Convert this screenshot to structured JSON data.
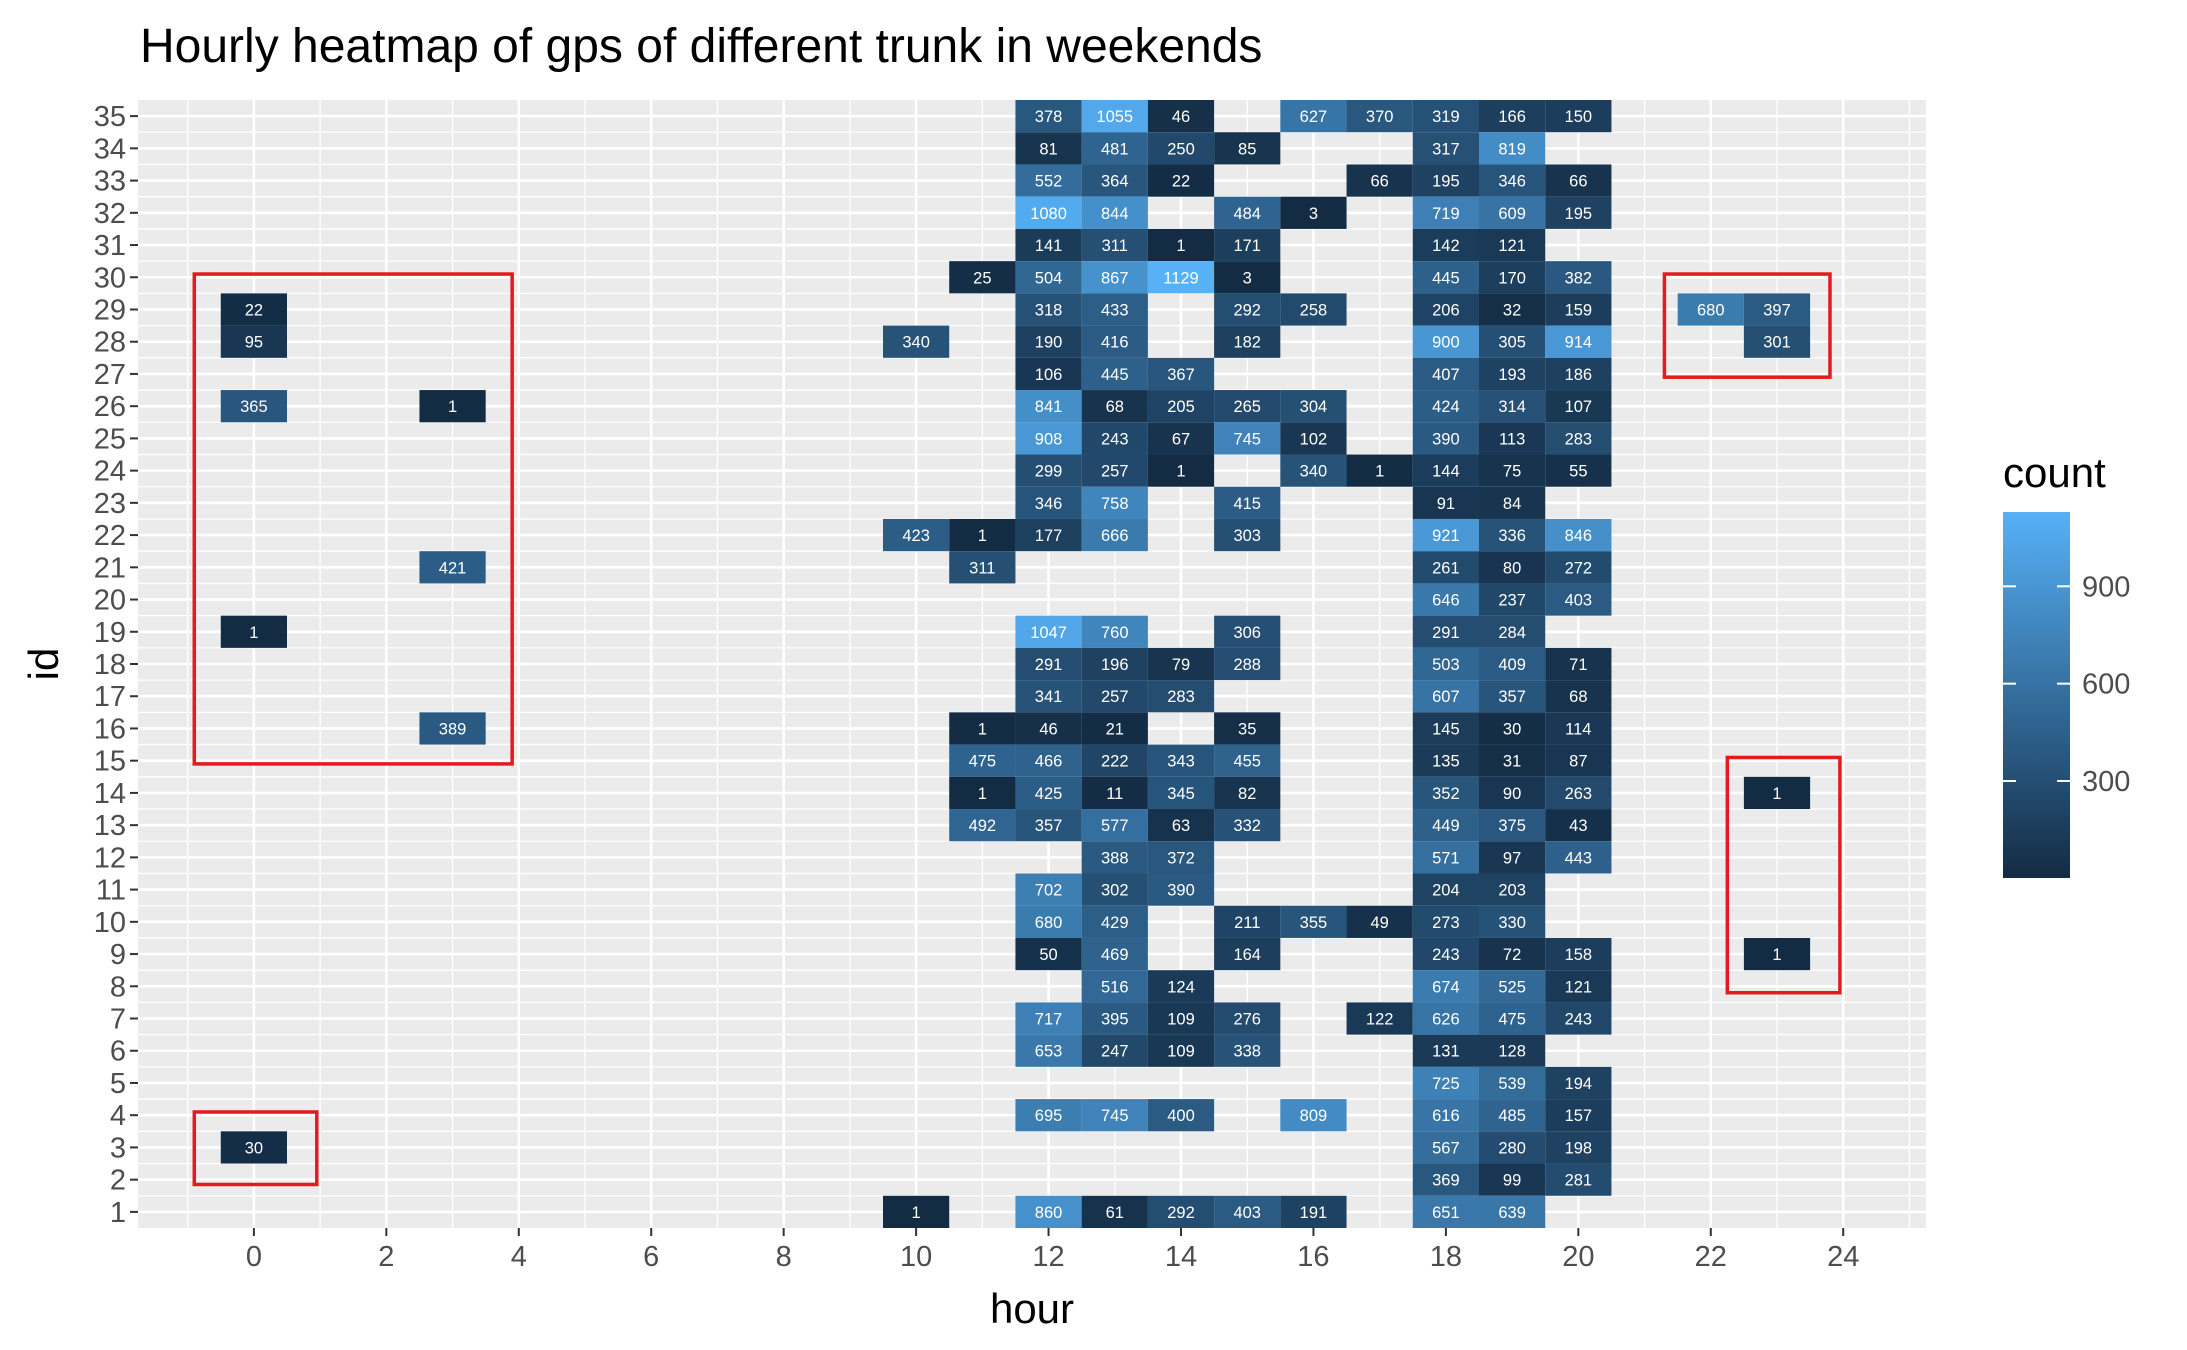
{
  "chart_data": {
    "type": "heatmap",
    "title": "Hourly heatmap of gps of different trunk in weekends",
    "xlabel": "hour",
    "ylabel": "id",
    "xlim": [
      -1.75,
      25.25
    ],
    "ylim": [
      0.5,
      35.5
    ],
    "x_ticks": [
      "0",
      "2",
      "4",
      "6",
      "8",
      "10",
      "12",
      "14",
      "16",
      "18",
      "20",
      "22",
      "24"
    ],
    "y_ticks": [
      "1",
      "2",
      "3",
      "4",
      "5",
      "6",
      "7",
      "8",
      "9",
      "10",
      "11",
      "12",
      "13",
      "14",
      "15",
      "16",
      "17",
      "18",
      "19",
      "20",
      "21",
      "22",
      "23",
      "24",
      "25",
      "26",
      "27",
      "28",
      "29",
      "30",
      "31",
      "32",
      "33",
      "34",
      "35"
    ],
    "grid": true,
    "legend": {
      "title": "count",
      "position": "right",
      "ticks": [
        "300",
        "600",
        "900"
      ],
      "range": [
        1,
        1129
      ],
      "color_low": "#132B43",
      "color_high": "#56B1F7"
    },
    "cells": [
      [
        0,
        29,
        22
      ],
      [
        0,
        28,
        95
      ],
      [
        0,
        26,
        365
      ],
      [
        0,
        19,
        1
      ],
      [
        0,
        3,
        30
      ],
      [
        3,
        26,
        1
      ],
      [
        3,
        21,
        421
      ],
      [
        3,
        16,
        389
      ],
      [
        10,
        28,
        340
      ],
      [
        10,
        22,
        423
      ],
      [
        10,
        1,
        1
      ],
      [
        11,
        30,
        25
      ],
      [
        11,
        22,
        1
      ],
      [
        11,
        21,
        311
      ],
      [
        11,
        16,
        1
      ],
      [
        11,
        15,
        475
      ],
      [
        11,
        14,
        1
      ],
      [
        11,
        13,
        492
      ],
      [
        12,
        35,
        378
      ],
      [
        12,
        34,
        81
      ],
      [
        12,
        33,
        552
      ],
      [
        12,
        32,
        1080
      ],
      [
        12,
        31,
        141
      ],
      [
        12,
        30,
        504
      ],
      [
        12,
        29,
        318
      ],
      [
        12,
        28,
        190
      ],
      [
        12,
        27,
        106
      ],
      [
        12,
        26,
        841
      ],
      [
        12,
        25,
        908
      ],
      [
        12,
        24,
        299
      ],
      [
        12,
        23,
        346
      ],
      [
        12,
        22,
        177
      ],
      [
        12,
        19,
        1047
      ],
      [
        12,
        18,
        291
      ],
      [
        12,
        17,
        341
      ],
      [
        12,
        16,
        46
      ],
      [
        12,
        15,
        466
      ],
      [
        12,
        14,
        425
      ],
      [
        12,
        13,
        357
      ],
      [
        12,
        11,
        702
      ],
      [
        12,
        10,
        680
      ],
      [
        12,
        9,
        50
      ],
      [
        12,
        7,
        717
      ],
      [
        12,
        6,
        653
      ],
      [
        12,
        4,
        695
      ],
      [
        12,
        1,
        860
      ],
      [
        13,
        35,
        1055
      ],
      [
        13,
        34,
        481
      ],
      [
        13,
        33,
        364
      ],
      [
        13,
        32,
        844
      ],
      [
        13,
        31,
        311
      ],
      [
        13,
        30,
        867
      ],
      [
        13,
        29,
        433
      ],
      [
        13,
        28,
        416
      ],
      [
        13,
        27,
        445
      ],
      [
        13,
        26,
        68
      ],
      [
        13,
        25,
        243
      ],
      [
        13,
        24,
        257
      ],
      [
        13,
        23,
        758
      ],
      [
        13,
        22,
        666
      ],
      [
        13,
        19,
        760
      ],
      [
        13,
        18,
        196
      ],
      [
        13,
        17,
        257
      ],
      [
        13,
        16,
        21
      ],
      [
        13,
        15,
        222
      ],
      [
        13,
        14,
        11
      ],
      [
        13,
        13,
        577
      ],
      [
        13,
        12,
        388
      ],
      [
        13,
        11,
        302
      ],
      [
        13,
        10,
        429
      ],
      [
        13,
        9,
        469
      ],
      [
        13,
        8,
        516
      ],
      [
        13,
        7,
        395
      ],
      [
        13,
        6,
        247
      ],
      [
        13,
        4,
        745
      ],
      [
        13,
        1,
        61
      ],
      [
        14,
        35,
        46
      ],
      [
        14,
        34,
        250
      ],
      [
        14,
        33,
        22
      ],
      [
        14,
        31,
        1
      ],
      [
        14,
        30,
        1129
      ],
      [
        14,
        27,
        367
      ],
      [
        14,
        26,
        205
      ],
      [
        14,
        25,
        67
      ],
      [
        14,
        24,
        1
      ],
      [
        14,
        18,
        79
      ],
      [
        14,
        17,
        283
      ],
      [
        14,
        15,
        343
      ],
      [
        14,
        14,
        345
      ],
      [
        14,
        13,
        63
      ],
      [
        14,
        12,
        372
      ],
      [
        14,
        11,
        390
      ],
      [
        14,
        8,
        124
      ],
      [
        14,
        7,
        109
      ],
      [
        14,
        6,
        109
      ],
      [
        14,
        4,
        400
      ],
      [
        14,
        1,
        292
      ],
      [
        15,
        34,
        85
      ],
      [
        15,
        32,
        484
      ],
      [
        15,
        31,
        171
      ],
      [
        15,
        30,
        3
      ],
      [
        15,
        29,
        292
      ],
      [
        15,
        28,
        182
      ],
      [
        15,
        26,
        265
      ],
      [
        15,
        25,
        745
      ],
      [
        15,
        23,
        415
      ],
      [
        15,
        22,
        303
      ],
      [
        15,
        19,
        306
      ],
      [
        15,
        18,
        288
      ],
      [
        15,
        16,
        35
      ],
      [
        15,
        15,
        455
      ],
      [
        15,
        14,
        82
      ],
      [
        15,
        13,
        332
      ],
      [
        15,
        10,
        211
      ],
      [
        15,
        9,
        164
      ],
      [
        15,
        7,
        276
      ],
      [
        15,
        6,
        338
      ],
      [
        15,
        1,
        403
      ],
      [
        16,
        35,
        627
      ],
      [
        16,
        32,
        3
      ],
      [
        16,
        29,
        258
      ],
      [
        16,
        26,
        304
      ],
      [
        16,
        25,
        102
      ],
      [
        16,
        24,
        340
      ],
      [
        16,
        10,
        355
      ],
      [
        16,
        4,
        809
      ],
      [
        16,
        1,
        191
      ],
      [
        17,
        35,
        370
      ],
      [
        17,
        33,
        66
      ],
      [
        17,
        24,
        1
      ],
      [
        17,
        10,
        49
      ],
      [
        17,
        7,
        122
      ],
      [
        18,
        35,
        319
      ],
      [
        18,
        34,
        317
      ],
      [
        18,
        33,
        195
      ],
      [
        18,
        32,
        719
      ],
      [
        18,
        31,
        142
      ],
      [
        18,
        30,
        445
      ],
      [
        18,
        29,
        206
      ],
      [
        18,
        28,
        900
      ],
      [
        18,
        27,
        407
      ],
      [
        18,
        26,
        424
      ],
      [
        18,
        25,
        390
      ],
      [
        18,
        24,
        144
      ],
      [
        18,
        23,
        91
      ],
      [
        18,
        22,
        921
      ],
      [
        18,
        21,
        261
      ],
      [
        18,
        20,
        646
      ],
      [
        18,
        19,
        291
      ],
      [
        18,
        18,
        503
      ],
      [
        18,
        17,
        607
      ],
      [
        18,
        16,
        145
      ],
      [
        18,
        15,
        135
      ],
      [
        18,
        14,
        352
      ],
      [
        18,
        13,
        449
      ],
      [
        18,
        12,
        571
      ],
      [
        18,
        11,
        204
      ],
      [
        18,
        10,
        273
      ],
      [
        18,
        9,
        243
      ],
      [
        18,
        8,
        674
      ],
      [
        18,
        7,
        626
      ],
      [
        18,
        6,
        131
      ],
      [
        18,
        5,
        725
      ],
      [
        18,
        4,
        616
      ],
      [
        18,
        3,
        567
      ],
      [
        18,
        2,
        369
      ],
      [
        18,
        1,
        651
      ],
      [
        19,
        35,
        166
      ],
      [
        19,
        34,
        819
      ],
      [
        19,
        33,
        346
      ],
      [
        19,
        32,
        609
      ],
      [
        19,
        31,
        121
      ],
      [
        19,
        30,
        170
      ],
      [
        19,
        29,
        32
      ],
      [
        19,
        28,
        305
      ],
      [
        19,
        27,
        193
      ],
      [
        19,
        26,
        314
      ],
      [
        19,
        25,
        113
      ],
      [
        19,
        24,
        75
      ],
      [
        19,
        23,
        84
      ],
      [
        19,
        22,
        336
      ],
      [
        19,
        21,
        80
      ],
      [
        19,
        20,
        237
      ],
      [
        19,
        19,
        284
      ],
      [
        19,
        18,
        409
      ],
      [
        19,
        17,
        357
      ],
      [
        19,
        16,
        30
      ],
      [
        19,
        15,
        31
      ],
      [
        19,
        14,
        90
      ],
      [
        19,
        13,
        375
      ],
      [
        19,
        12,
        97
      ],
      [
        19,
        11,
        203
      ],
      [
        19,
        10,
        330
      ],
      [
        19,
        9,
        72
      ],
      [
        19,
        8,
        525
      ],
      [
        19,
        7,
        475
      ],
      [
        19,
        6,
        128
      ],
      [
        19,
        5,
        539
      ],
      [
        19,
        4,
        485
      ],
      [
        19,
        3,
        280
      ],
      [
        19,
        2,
        99
      ],
      [
        19,
        1,
        639
      ],
      [
        20,
        35,
        150
      ],
      [
        20,
        33,
        66
      ],
      [
        20,
        32,
        195
      ],
      [
        20,
        30,
        382
      ],
      [
        20,
        29,
        159
      ],
      [
        20,
        28,
        914
      ],
      [
        20,
        27,
        186
      ],
      [
        20,
        26,
        107
      ],
      [
        20,
        25,
        283
      ],
      [
        20,
        24,
        55
      ],
      [
        20,
        22,
        846
      ],
      [
        20,
        21,
        272
      ],
      [
        20,
        20,
        403
      ],
      [
        20,
        18,
        71
      ],
      [
        20,
        17,
        68
      ],
      [
        20,
        16,
        114
      ],
      [
        20,
        15,
        87
      ],
      [
        20,
        14,
        263
      ],
      [
        20,
        13,
        43
      ],
      [
        20,
        12,
        443
      ],
      [
        20,
        9,
        158
      ],
      [
        20,
        8,
        121
      ],
      [
        20,
        7,
        243
      ],
      [
        20,
        5,
        194
      ],
      [
        20,
        4,
        157
      ],
      [
        20,
        3,
        198
      ],
      [
        20,
        2,
        281
      ],
      [
        22,
        29,
        680
      ],
      [
        23,
        29,
        397
      ],
      [
        23,
        28,
        301
      ],
      [
        23,
        14,
        1
      ],
      [
        23,
        9,
        1
      ]
    ],
    "annotations": [
      {
        "type": "highlight-box",
        "x": [
          -0.9,
          3.9
        ],
        "y": [
          14.9,
          30.1
        ],
        "color": "#E41A1C"
      },
      {
        "type": "highlight-box",
        "x": [
          -0.9,
          0.95
        ],
        "y": [
          1.85,
          4.1
        ],
        "color": "#E41A1C"
      },
      {
        "type": "highlight-box",
        "x": [
          21.3,
          23.8
        ],
        "y": [
          26.9,
          30.1
        ],
        "color": "#E41A1C"
      },
      {
        "type": "highlight-box",
        "x": [
          22.25,
          23.95
        ],
        "y": [
          7.8,
          15.1
        ],
        "color": "#E41A1C"
      }
    ]
  }
}
